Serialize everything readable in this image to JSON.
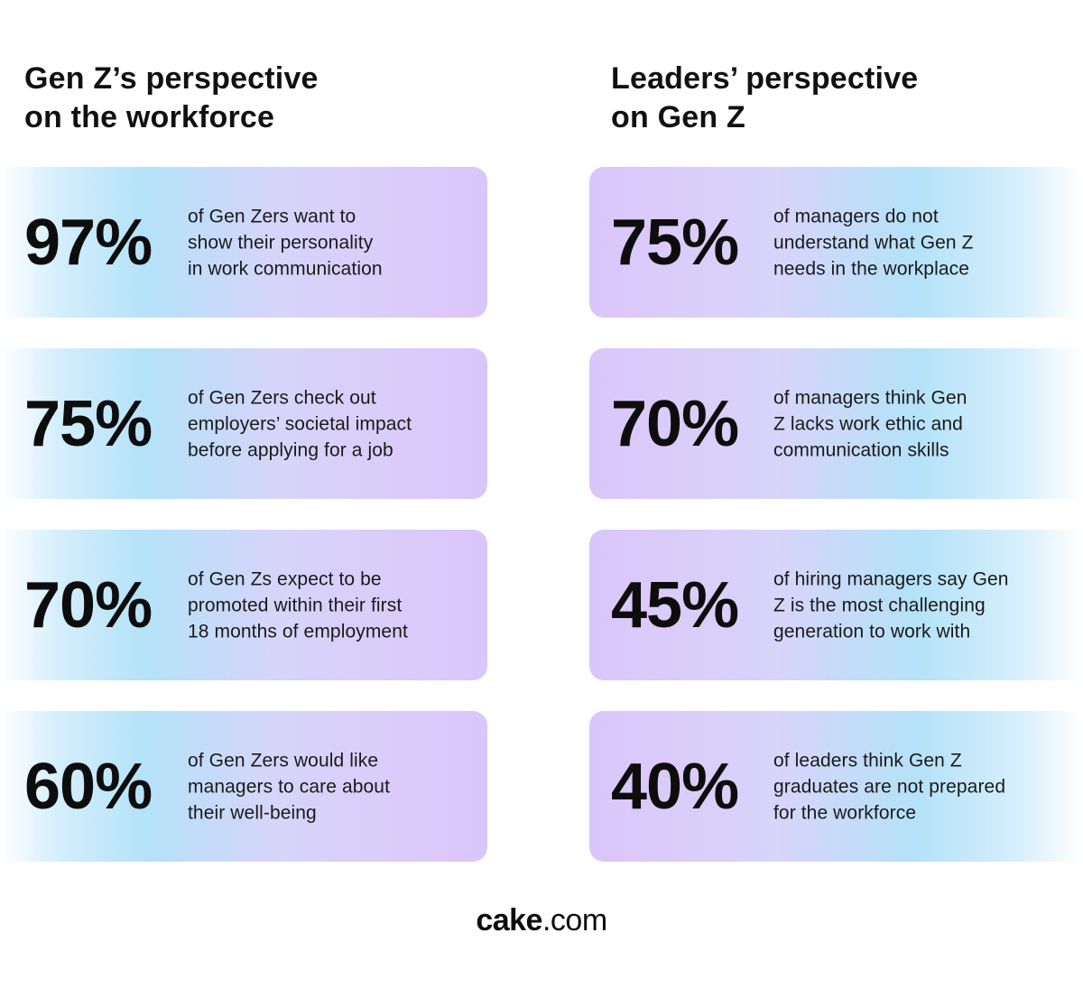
{
  "left": {
    "title": "Gen Z’s perspective\non the workforce",
    "stats": [
      {
        "percent": "97%",
        "text": "of Gen Zers want to\nshow their personality\nin work communication"
      },
      {
        "percent": "75%",
        "text": "of Gen Zers check out\nemployers’ societal impact\nbefore applying for a job"
      },
      {
        "percent": "70%",
        "text": "of Gen Zs expect to be\npromoted within their first\n18 months of employment"
      },
      {
        "percent": "60%",
        "text": "of Gen Zers would like\nmanagers to care about\ntheir well-being"
      }
    ]
  },
  "right": {
    "title": "Leaders’ perspective\non Gen Z",
    "stats": [
      {
        "percent": "75%",
        "text": "of managers do not\nunderstand what Gen Z\nneeds in the workplace"
      },
      {
        "percent": "70%",
        "text": "of managers think Gen\nZ lacks work ethic and\ncommunication skills"
      },
      {
        "percent": "45%",
        "text": "of hiring managers say Gen\nZ is the most challenging\ngeneration to work with"
      },
      {
        "percent": "40%",
        "text": "of leaders think Gen Z\ngraduates are not prepared\nfor the workforce"
      }
    ]
  },
  "footer": {
    "brand_bold": "cake",
    "brand_rest": ".com"
  },
  "colors": {
    "card_cyan": "#b4e2f8",
    "card_lavender": "#dac6fa",
    "text": "#111111"
  }
}
